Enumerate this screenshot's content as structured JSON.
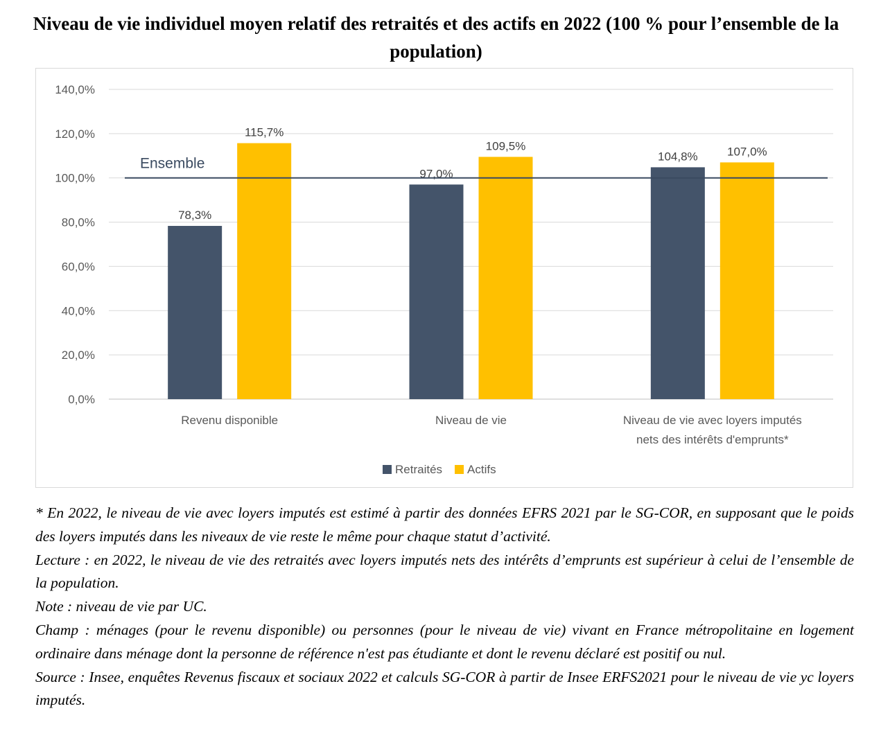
{
  "title": "Niveau de vie individuel moyen relatif des retraités et des actifs en 2022 (100 % pour l’ensemble de la population)",
  "chart_data": {
    "type": "bar",
    "categories": [
      [
        "Revenu disponible"
      ],
      [
        "Niveau de vie"
      ],
      [
        "Niveau de vie avec loyers imputés",
        "nets des intérêts d'emprunts*"
      ]
    ],
    "series": [
      {
        "name": "Retraités",
        "color": "#44546a",
        "values": [
          78.3,
          97.0,
          104.8
        ],
        "labels": [
          "78,3%",
          "97,0%",
          "104,8%"
        ]
      },
      {
        "name": "Actifs",
        "color": "#ffc000",
        "values": [
          115.7,
          109.5,
          107.0
        ],
        "labels": [
          "115,7%",
          "109,5%",
          "107,0%"
        ]
      }
    ],
    "yticks": [
      "0,0%",
      "20,0%",
      "40,0%",
      "60,0%",
      "80,0%",
      "100,0%",
      "120,0%",
      "140,0%"
    ],
    "ylim": [
      0,
      140
    ],
    "reference_line": {
      "value": 100,
      "label": "Ensemble",
      "color": "#3a4a60"
    },
    "grid": true,
    "legend_position": "bottom"
  },
  "notes": [
    "* En 2022, le niveau de vie avec loyers imputés est estimé à partir des données EFRS 2021 par le SG-COR, en supposant que le poids des loyers imputés dans les niveaux de vie reste le même pour chaque statut d’activité.",
    "Lecture : en 2022, le niveau de vie des retraités avec loyers imputés nets des intérêts d’emprunts est supérieur à celui de l’ensemble de la population.",
    "Note : niveau de vie par UC.",
    "Champ : ménages (pour le revenu disponible) ou personnes (pour le niveau de vie) vivant en France métropolitaine en logement ordinaire dans ménage dont la personne de référence n'est pas étudiante et dont le revenu déclaré est positif ou nul.",
    "Source : Insee, enquêtes Revenus fiscaux et sociaux 2022 et calculs SG-COR à partir de Insee ERFS2021 pour le niveau de vie yc loyers imputés."
  ]
}
